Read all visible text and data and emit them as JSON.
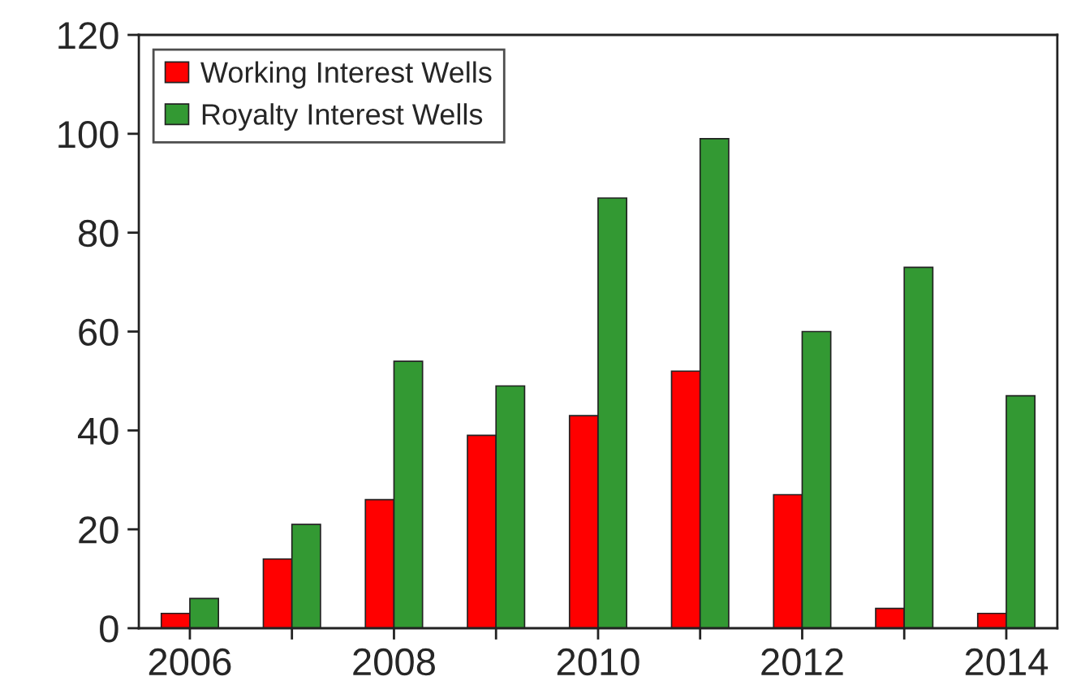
{
  "chart_data": {
    "type": "bar",
    "categories": [
      "2006",
      null,
      "2008",
      null,
      "2010",
      null,
      "2012",
      null,
      "2014"
    ],
    "series": [
      {
        "name": "Working Interest Wells",
        "color": "#ff0000",
        "values": [
          3,
          14,
          26,
          39,
          43,
          52,
          27,
          4,
          3
        ]
      },
      {
        "name": "Royalty Interest Wells",
        "color": "#339933",
        "values": [
          6,
          21,
          54,
          49,
          87,
          99,
          60,
          73,
          47
        ]
      }
    ],
    "ylim": [
      0,
      120
    ],
    "yticks": [
      0,
      20,
      40,
      60,
      80,
      100,
      120
    ],
    "grid": false,
    "legend": "top left"
  }
}
